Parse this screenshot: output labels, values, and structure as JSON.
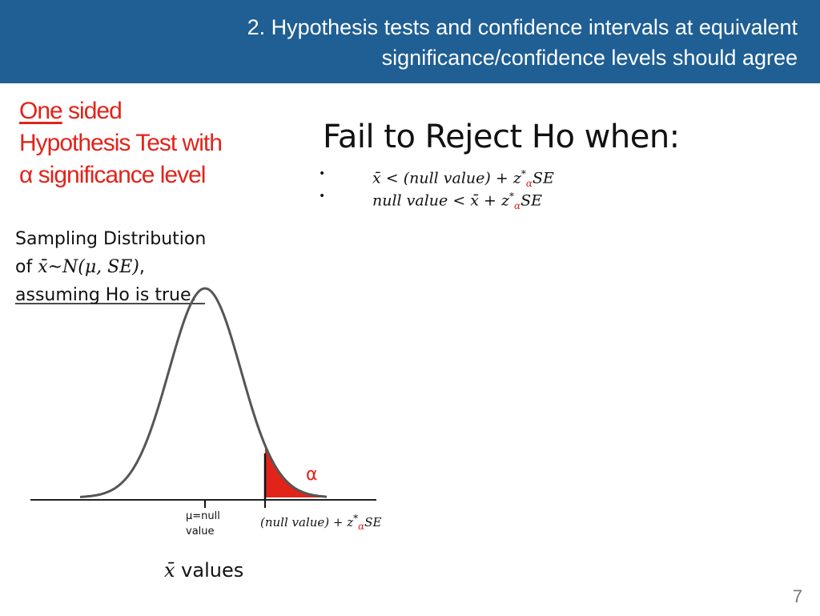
{
  "header": {
    "title_line1": "2. Hypothesis tests and confidence intervals at equivalent",
    "title_line2": "significance/confidence levels should agree",
    "bg_color": "#1f5f93"
  },
  "left_heading": {
    "word_one": "One",
    "word_sided": " sided",
    "line2": "Hypothesis Test with",
    "line3": "α significance level",
    "color": "#e2231a"
  },
  "right_heading": "Fail to Reject Ho when:",
  "bullets": [
    {
      "marker": "•",
      "lhs": "x̄ < (null value) + z",
      "sup": "*",
      "sub": "α",
      "rhs": "SE"
    },
    {
      "marker": "•",
      "lhs": "null value < x̄ + z",
      "sup": "*",
      "sub": "α",
      "rhs": "SE"
    }
  ],
  "sampling": {
    "line1": "Sampling Distribution",
    "line2_prefix": "of ",
    "line2_math": "x̄~N(μ, SE)",
    "line2_suffix": ",",
    "line3": "assuming Ho is true."
  },
  "chart": {
    "mu_label_line1": "μ=null",
    "mu_label_line2": "value",
    "crit_label_prefix": "(null value) + z",
    "crit_sup": "*",
    "crit_sub": "α",
    "crit_suffix": "SE",
    "alpha_label": "α",
    "xlabel_math": "x̄",
    "xlabel_text": " values",
    "shade_color": "#e2231a"
  },
  "page_number": "7"
}
